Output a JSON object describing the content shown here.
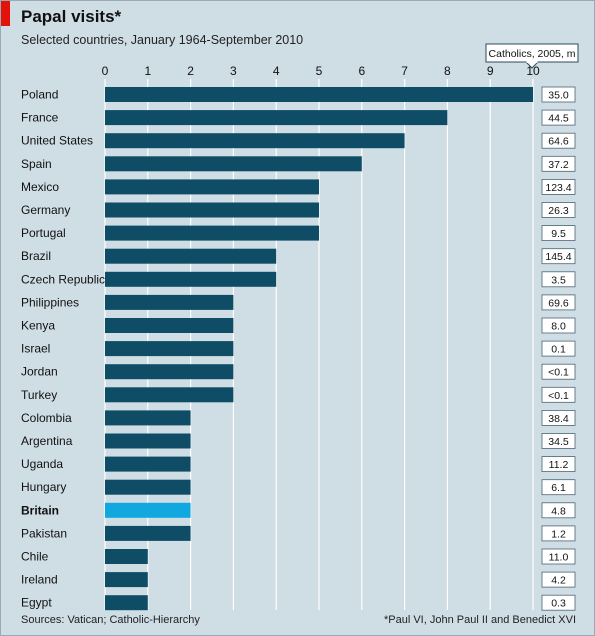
{
  "title": "Papal visits*",
  "subtitle": "Selected countries, January 1964-September 2010",
  "source": "Sources: Vatican; Catholic-Hierarchy",
  "footnote": "*Paul VI, John Paul II and Benedict XVI",
  "colors": {
    "background": "#cfdde5",
    "bar": "#0f4d66",
    "bar_highlight": "#11a8e0",
    "accent": "#e3120b"
  },
  "chart_data": {
    "type": "bar",
    "orientation": "horizontal",
    "xlim": [
      0,
      10
    ],
    "xticks": [
      0,
      1,
      2,
      3,
      4,
      5,
      6,
      7,
      8,
      9,
      10
    ],
    "grid": true,
    "highlight": "Britain",
    "column_header": "Catholics, 2005, m",
    "categories": [
      "Poland",
      "France",
      "United States",
      "Spain",
      "Mexico",
      "Germany",
      "Portugal",
      "Brazil",
      "Czech Republic",
      "Philippines",
      "Kenya",
      "Israel",
      "Jordan",
      "Turkey",
      "Colombia",
      "Argentina",
      "Uganda",
      "Hungary",
      "Britain",
      "Pakistan",
      "Chile",
      "Ireland",
      "Egypt"
    ],
    "values": [
      10,
      8,
      7,
      6,
      5,
      5,
      5,
      4,
      4,
      3,
      3,
      3,
      3,
      3,
      2,
      2,
      2,
      2,
      2,
      2,
      1,
      1,
      1
    ],
    "catholics": [
      "35.0",
      "44.5",
      "64.6",
      "37.2",
      "123.4",
      "26.3",
      "9.5",
      "145.4",
      "3.5",
      "69.6",
      "8.0",
      "0.1",
      "<0.1",
      "<0.1",
      "38.4",
      "34.5",
      "11.2",
      "6.1",
      "4.8",
      "1.2",
      "11.0",
      "4.2",
      "0.3"
    ]
  }
}
